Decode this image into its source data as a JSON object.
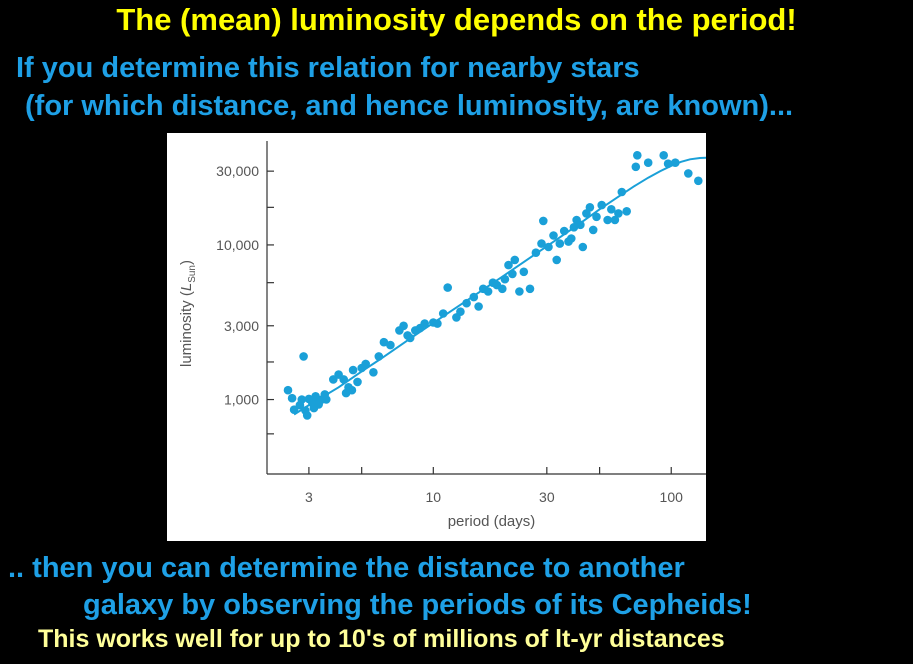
{
  "slide": {
    "title": "The (mean) luminosity depends on the period!",
    "intro_line1": "If you determine this relation for nearby stars",
    "intro_line2": "(for which distance, and hence luminosity, are known)...",
    "outro_line1": ".. then you can determine the distance to another",
    "outro_line2": "galaxy by observing the periods of its Cepheids!",
    "footnote": "This works well for up to 10's of millions of lt-yr distances"
  },
  "colors": {
    "background": "#000000",
    "title_yellow": "#ffff00",
    "body_blue": "#1ea0e6",
    "footnote_yellow": "#ffff99",
    "data_blue": "#1aa0d8",
    "axis_gray": "#555555"
  },
  "chart_data": {
    "type": "scatter",
    "xscale": "log",
    "yscale": "log",
    "xlabel": "period (days)",
    "ylabel_main": "luminosity (",
    "ylabel_symbol": "L",
    "ylabel_sub": "Sun",
    "ylabel_close": ")",
    "xlim": [
      2.0,
      140
    ],
    "ylim": [
      330,
      47000
    ],
    "xticks": [
      {
        "value": 3,
        "label": "3"
      },
      {
        "value": 10,
        "label": "10"
      },
      {
        "value": 30,
        "label": "30"
      },
      {
        "value": 100,
        "label": "100"
      }
    ],
    "xticks_minor": [
      5,
      50
    ],
    "yticks": [
      {
        "value": 1000,
        "label": "1,000"
      },
      {
        "value": 3000,
        "label": "3,000"
      },
      {
        "value": 10000,
        "label": "10,000"
      },
      {
        "value": 30000,
        "label": "30,000"
      }
    ],
    "yticks_minor": [
      600,
      1750,
      5700,
      17500
    ],
    "grid": false,
    "legend": "none",
    "points": [
      [
        2.45,
        1150
      ],
      [
        2.55,
        1020
      ],
      [
        2.6,
        860
      ],
      [
        2.75,
        920
      ],
      [
        2.8,
        1000
      ],
      [
        2.85,
        1900
      ],
      [
        2.9,
        850
      ],
      [
        2.95,
        790
      ],
      [
        3.0,
        1010
      ],
      [
        3.1,
        950
      ],
      [
        3.15,
        880
      ],
      [
        3.2,
        1050
      ],
      [
        3.3,
        930
      ],
      [
        3.4,
        1000
      ],
      [
        3.5,
        1080
      ],
      [
        3.55,
        1000
      ],
      [
        3.8,
        1350
      ],
      [
        4.0,
        1450
      ],
      [
        4.2,
        1350
      ],
      [
        4.3,
        1100
      ],
      [
        4.4,
        1200
      ],
      [
        4.55,
        1150
      ],
      [
        4.6,
        1550
      ],
      [
        4.8,
        1300
      ],
      [
        5.0,
        1600
      ],
      [
        5.2,
        1700
      ],
      [
        5.6,
        1500
      ],
      [
        5.9,
        1900
      ],
      [
        6.2,
        2350
      ],
      [
        6.6,
        2250
      ],
      [
        7.2,
        2800
      ],
      [
        7.5,
        3000
      ],
      [
        7.8,
        2600
      ],
      [
        8.0,
        2500
      ],
      [
        8.4,
        2800
      ],
      [
        8.8,
        2900
      ],
      [
        9.2,
        3100
      ],
      [
        10.0,
        3150
      ],
      [
        10.4,
        3100
      ],
      [
        11.0,
        3600
      ],
      [
        11.5,
        5300
      ],
      [
        12.5,
        3400
      ],
      [
        13.0,
        3700
      ],
      [
        13.8,
        4200
      ],
      [
        14.8,
        4600
      ],
      [
        15.5,
        4000
      ],
      [
        16.2,
        5200
      ],
      [
        17.0,
        5000
      ],
      [
        17.8,
        5700
      ],
      [
        18.5,
        5500
      ],
      [
        19.5,
        5200
      ],
      [
        20.0,
        6000
      ],
      [
        20.7,
        7400
      ],
      [
        21.5,
        6500
      ],
      [
        22.0,
        8000
      ],
      [
        23.0,
        5000
      ],
      [
        24.0,
        6700
      ],
      [
        25.5,
        5200
      ],
      [
        27.0,
        8900
      ],
      [
        28.5,
        10200
      ],
      [
        29.0,
        14300
      ],
      [
        30.5,
        9700
      ],
      [
        32.0,
        11500
      ],
      [
        33.0,
        8000
      ],
      [
        34.0,
        10200
      ],
      [
        35.5,
        12300
      ],
      [
        37.0,
        10500
      ],
      [
        38.0,
        11000
      ],
      [
        39.0,
        13000
      ],
      [
        40.0,
        14500
      ],
      [
        41.5,
        13500
      ],
      [
        42.5,
        9700
      ],
      [
        44.0,
        16000
      ],
      [
        45.5,
        17500
      ],
      [
        47.0,
        12500
      ],
      [
        48.5,
        15200
      ],
      [
        51.0,
        18100
      ],
      [
        54.0,
        14500
      ],
      [
        56.0,
        17000
      ],
      [
        58.0,
        14500
      ],
      [
        60.0,
        16000
      ],
      [
        62.0,
        22000
      ],
      [
        65.0,
        16500
      ],
      [
        71.0,
        32000
      ],
      [
        72.0,
        38000
      ],
      [
        80.0,
        34000
      ],
      [
        93.0,
        38000
      ],
      [
        97.0,
        33500
      ],
      [
        104.0,
        34000
      ],
      [
        118.0,
        29000
      ],
      [
        130.0,
        26000
      ]
    ],
    "fit_curve": [
      [
        2.6,
        800
      ],
      [
        3.0,
        920
      ],
      [
        4.0,
        1200
      ],
      [
        5.0,
        1520
      ],
      [
        6.0,
        1830
      ],
      [
        8.0,
        2480
      ],
      [
        10.0,
        3130
      ],
      [
        15.0,
        4750
      ],
      [
        20.0,
        6400
      ],
      [
        30.0,
        9800
      ],
      [
        40.0,
        13300
      ],
      [
        50.0,
        17000
      ],
      [
        60.0,
        20500
      ],
      [
        70.0,
        24000
      ],
      [
        80.0,
        27200
      ],
      [
        90.0,
        30000
      ],
      [
        100.0,
        32500
      ],
      [
        110.0,
        34500
      ],
      [
        120.0,
        35800
      ],
      [
        132.0,
        36500
      ],
      [
        140.0,
        36600
      ]
    ]
  }
}
